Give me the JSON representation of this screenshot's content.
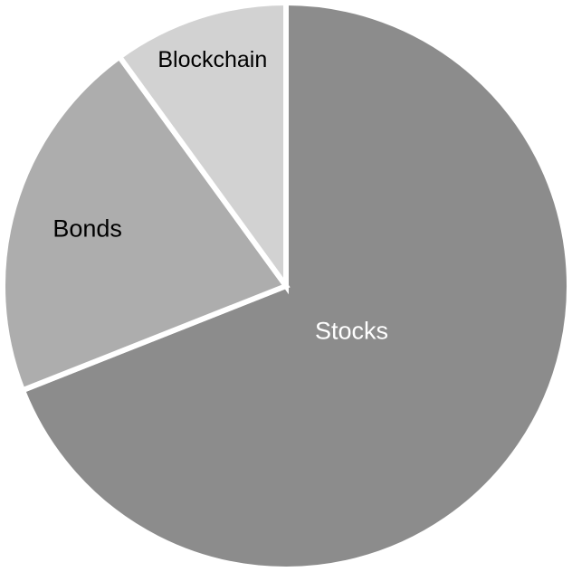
{
  "chart_data": {
    "type": "pie",
    "title": "",
    "categories": [
      "Stocks",
      "Bonds",
      "Blockchain"
    ],
    "values": [
      69,
      21,
      10
    ],
    "colors": [
      "#8c8c8c",
      "#adadad",
      "#d2d2d2"
    ],
    "label_colors": [
      "#ffffff",
      "#000000",
      "#000000"
    ],
    "start": "12 o'clock",
    "direction": "clockwise",
    "legend": "none"
  }
}
